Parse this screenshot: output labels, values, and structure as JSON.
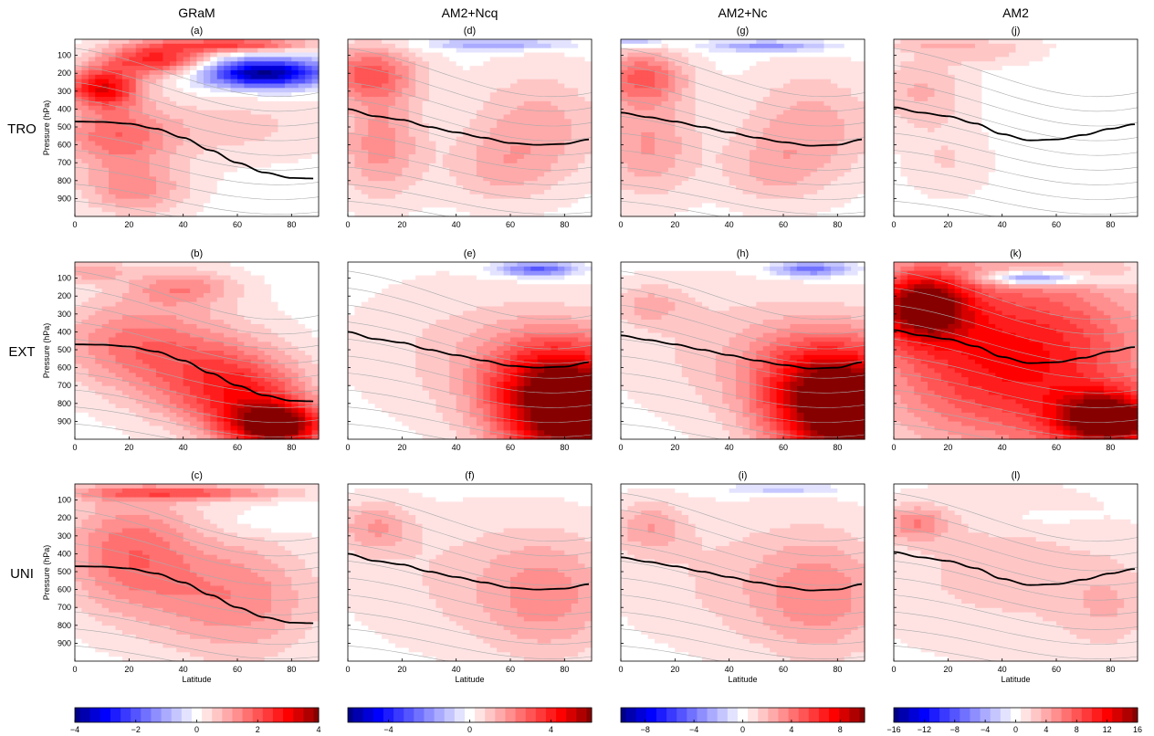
{
  "column_titles": [
    "GRaM",
    "AM2+Ncq",
    "AM2+Nc",
    "AM2"
  ],
  "row_labels": [
    "TRO",
    "EXT",
    "UNI"
  ],
  "panel_labels": [
    [
      "(a)",
      "(d)",
      "(g)",
      "(j)"
    ],
    [
      "(b)",
      "(e)",
      "(h)",
      "(k)"
    ],
    [
      "(c)",
      "(f)",
      "(i)",
      "(l)"
    ]
  ],
  "axes": {
    "ylabel": "Pressure (hPa)",
    "xlabel": "Latitude",
    "x_ticks": [
      "0",
      "20",
      "40",
      "60",
      "80"
    ],
    "y_ticks": [
      "100",
      "200",
      "300",
      "400",
      "500",
      "600",
      "700",
      "800",
      "900"
    ]
  },
  "colorbars": [
    {
      "ticks": [
        "−4",
        "−2",
        "0",
        "2",
        "4"
      ]
    },
    {
      "ticks": [
        "−4",
        "0",
        "4"
      ]
    },
    {
      "ticks": [
        "−8",
        "−4",
        "0",
        "4",
        "8"
      ]
    },
    {
      "ticks": [
        "−16",
        "−12",
        "−8",
        "−4",
        "0",
        "4",
        "8",
        "12",
        "16"
      ]
    }
  ],
  "colors": {
    "positive": "#ff0000",
    "negative": "#0000ff",
    "neutral": "#ffffff",
    "tropopause": "#000000",
    "contour": "#aaaaaa"
  },
  "chart_data": {
    "type": "heatmap",
    "x_range": [
      0,
      90
    ],
    "y_range": [
      1000,
      10
    ],
    "y_reversed": true,
    "colorbar_ranges": [
      [
        -4,
        4
      ],
      [
        -6,
        6
      ],
      [
        -10,
        10
      ],
      [
        -16,
        16
      ]
    ],
    "tropopause": [
      {
        "x": [
          0,
          10,
          20,
          30,
          40,
          50,
          60,
          70,
          80,
          88
        ],
        "y": [
          470,
          472,
          482,
          510,
          560,
          630,
          700,
          755,
          785,
          788
        ]
      },
      {
        "x": [
          0,
          10,
          20,
          30,
          40,
          50,
          60,
          70,
          80,
          89
        ],
        "y": [
          400,
          440,
          460,
          500,
          530,
          560,
          590,
          600,
          595,
          570
        ]
      },
      {
        "x": [
          0,
          10,
          20,
          30,
          40,
          50,
          60,
          70,
          80,
          89
        ],
        "y": [
          420,
          445,
          470,
          500,
          530,
          560,
          585,
          605,
          600,
          570
        ]
      },
      {
        "x": [
          0,
          10,
          20,
          30,
          40,
          50,
          60,
          70,
          80,
          89
        ],
        "y": [
          390,
          420,
          440,
          480,
          540,
          575,
          570,
          545,
          510,
          485
        ]
      }
    ],
    "panels": [
      {
        "id": "(a)",
        "row": "TRO",
        "col": "GRaM",
        "blobs": [
          {
            "lat": 10,
            "p": 280,
            "rx": 14,
            "ry": 110,
            "v": 3.0
          },
          {
            "lat": 30,
            "p": 120,
            "rx": 20,
            "ry": 90,
            "v": 2.6
          },
          {
            "lat": 60,
            "p": 40,
            "rx": 28,
            "ry": 40,
            "v": 2.2
          },
          {
            "lat": 15,
            "p": 550,
            "rx": 22,
            "ry": 180,
            "v": 1.7
          },
          {
            "lat": 22,
            "p": 850,
            "rx": 20,
            "ry": 150,
            "v": 1.3
          },
          {
            "lat": 70,
            "p": 200,
            "rx": 22,
            "ry": 80,
            "v": -4.0
          },
          {
            "lat": 60,
            "p": 500,
            "rx": 35,
            "ry": 200,
            "v": 0.6
          }
        ]
      },
      {
        "id": "(d)",
        "row": "TRO",
        "col": "AM2+Ncq",
        "blobs": [
          {
            "lat": 8,
            "p": 200,
            "rx": 18,
            "ry": 160,
            "v": 2.8
          },
          {
            "lat": 12,
            "p": 600,
            "rx": 16,
            "ry": 300,
            "v": 2.0
          },
          {
            "lat": 70,
            "p": 500,
            "rx": 26,
            "ry": 320,
            "v": 1.5
          },
          {
            "lat": 55,
            "p": 750,
            "rx": 20,
            "ry": 200,
            "v": 1.0
          },
          {
            "lat": 55,
            "p": 40,
            "rx": 25,
            "ry": 30,
            "v": -1.8
          }
        ]
      },
      {
        "id": "(g)",
        "row": "TRO",
        "col": "AM2+Nc",
        "blobs": [
          {
            "lat": 8,
            "p": 220,
            "rx": 16,
            "ry": 150,
            "v": 4.5
          },
          {
            "lat": 10,
            "p": 600,
            "rx": 18,
            "ry": 300,
            "v": 3.0
          },
          {
            "lat": 70,
            "p": 500,
            "rx": 26,
            "ry": 320,
            "v": 2.5
          },
          {
            "lat": 55,
            "p": 750,
            "rx": 20,
            "ry": 200,
            "v": 1.6
          },
          {
            "lat": 55,
            "p": 50,
            "rx": 22,
            "ry": 30,
            "v": -3.5
          },
          {
            "lat": 5,
            "p": 30,
            "rx": 10,
            "ry": 20,
            "v": -3.0
          }
        ]
      },
      {
        "id": "(j)",
        "row": "TRO",
        "col": "AM2",
        "blobs": [
          {
            "lat": 10,
            "p": 300,
            "rx": 18,
            "ry": 220,
            "v": 3.5
          },
          {
            "lat": 20,
            "p": 700,
            "rx": 16,
            "ry": 200,
            "v": 2.0
          },
          {
            "lat": 35,
            "p": 100,
            "rx": 20,
            "ry": 60,
            "v": 2.0
          },
          {
            "lat": 20,
            "p": 40,
            "rx": 30,
            "ry": 40,
            "v": 2.5
          }
        ]
      },
      {
        "id": "(b)",
        "row": "EXT",
        "col": "GRaM",
        "blobs": [
          {
            "lat": 75,
            "p": 930,
            "rx": 18,
            "ry": 130,
            "v": 4.0
          },
          {
            "lat": 62,
            "p": 750,
            "rx": 25,
            "ry": 230,
            "v": 2.2
          },
          {
            "lat": 40,
            "p": 550,
            "rx": 30,
            "ry": 300,
            "v": 1.3
          },
          {
            "lat": 15,
            "p": 450,
            "rx": 25,
            "ry": 250,
            "v": 1.0
          },
          {
            "lat": 40,
            "p": 150,
            "rx": 20,
            "ry": 100,
            "v": 1.2
          },
          {
            "lat": 5,
            "p": 60,
            "rx": 15,
            "ry": 60,
            "v": 1.0
          }
        ]
      },
      {
        "id": "(e)",
        "row": "EXT",
        "col": "AM2+Ncq",
        "blobs": [
          {
            "lat": 88,
            "p": 900,
            "rx": 28,
            "ry": 380,
            "v": 6.0
          },
          {
            "lat": 72,
            "p": 700,
            "rx": 25,
            "ry": 300,
            "v": 3.0
          },
          {
            "lat": 40,
            "p": 500,
            "rx": 40,
            "ry": 400,
            "v": 0.8
          },
          {
            "lat": 70,
            "p": 50,
            "rx": 14,
            "ry": 40,
            "v": -3.0
          }
        ]
      },
      {
        "id": "(h)",
        "row": "EXT",
        "col": "AM2+Nc",
        "blobs": [
          {
            "lat": 88,
            "p": 900,
            "rx": 28,
            "ry": 380,
            "v": 10.0
          },
          {
            "lat": 72,
            "p": 700,
            "rx": 25,
            "ry": 300,
            "v": 5.0
          },
          {
            "lat": 40,
            "p": 500,
            "rx": 40,
            "ry": 400,
            "v": 1.5
          },
          {
            "lat": 10,
            "p": 250,
            "rx": 14,
            "ry": 120,
            "v": 2.0
          },
          {
            "lat": 70,
            "p": 50,
            "rx": 14,
            "ry": 40,
            "v": -4.5
          }
        ]
      },
      {
        "id": "(k)",
        "row": "EXT",
        "col": "AM2",
        "blobs": [
          {
            "lat": 10,
            "p": 250,
            "rx": 18,
            "ry": 200,
            "v": 14.0
          },
          {
            "lat": 45,
            "p": 550,
            "rx": 50,
            "ry": 500,
            "v": 12.0
          },
          {
            "lat": 80,
            "p": 900,
            "rx": 20,
            "ry": 160,
            "v": 16.0
          },
          {
            "lat": 50,
            "p": 100,
            "rx": 16,
            "ry": 40,
            "v": -9.0
          },
          {
            "lat": 70,
            "p": 110,
            "rx": 20,
            "ry": 40,
            "v": -2.0
          }
        ]
      },
      {
        "id": "(c)",
        "row": "UNI",
        "col": "GRaM",
        "blobs": [
          {
            "lat": 20,
            "p": 400,
            "rx": 25,
            "ry": 350,
            "v": 1.7
          },
          {
            "lat": 60,
            "p": 650,
            "rx": 30,
            "ry": 350,
            "v": 1.4
          },
          {
            "lat": 40,
            "p": 60,
            "rx": 40,
            "ry": 40,
            "v": 1.8
          },
          {
            "lat": 70,
            "p": 230,
            "rx": 18,
            "ry": 70,
            "v": -0.3
          }
        ]
      },
      {
        "id": "(f)",
        "row": "UNI",
        "col": "AM2+Ncq",
        "blobs": [
          {
            "lat": 10,
            "p": 250,
            "rx": 14,
            "ry": 150,
            "v": 1.6
          },
          {
            "lat": 75,
            "p": 650,
            "rx": 25,
            "ry": 350,
            "v": 1.6
          },
          {
            "lat": 45,
            "p": 550,
            "rx": 45,
            "ry": 400,
            "v": 0.8
          }
        ]
      },
      {
        "id": "(i)",
        "row": "UNI",
        "col": "AM2+Nc",
        "blobs": [
          {
            "lat": 10,
            "p": 250,
            "rx": 14,
            "ry": 150,
            "v": 2.5
          },
          {
            "lat": 75,
            "p": 650,
            "rx": 25,
            "ry": 350,
            "v": 2.8
          },
          {
            "lat": 45,
            "p": 550,
            "rx": 45,
            "ry": 400,
            "v": 1.4
          },
          {
            "lat": 60,
            "p": 40,
            "rx": 20,
            "ry": 30,
            "v": -2.0
          }
        ]
      },
      {
        "id": "(l)",
        "row": "UNI",
        "col": "AM2",
        "blobs": [
          {
            "lat": 8,
            "p": 230,
            "rx": 12,
            "ry": 100,
            "v": 5.0
          },
          {
            "lat": 40,
            "p": 500,
            "rx": 50,
            "ry": 450,
            "v": 2.5
          },
          {
            "lat": 80,
            "p": 700,
            "rx": 18,
            "ry": 250,
            "v": 2.5
          },
          {
            "lat": 55,
            "p": 200,
            "rx": 20,
            "ry": 60,
            "v": -1.0
          }
        ]
      }
    ]
  }
}
